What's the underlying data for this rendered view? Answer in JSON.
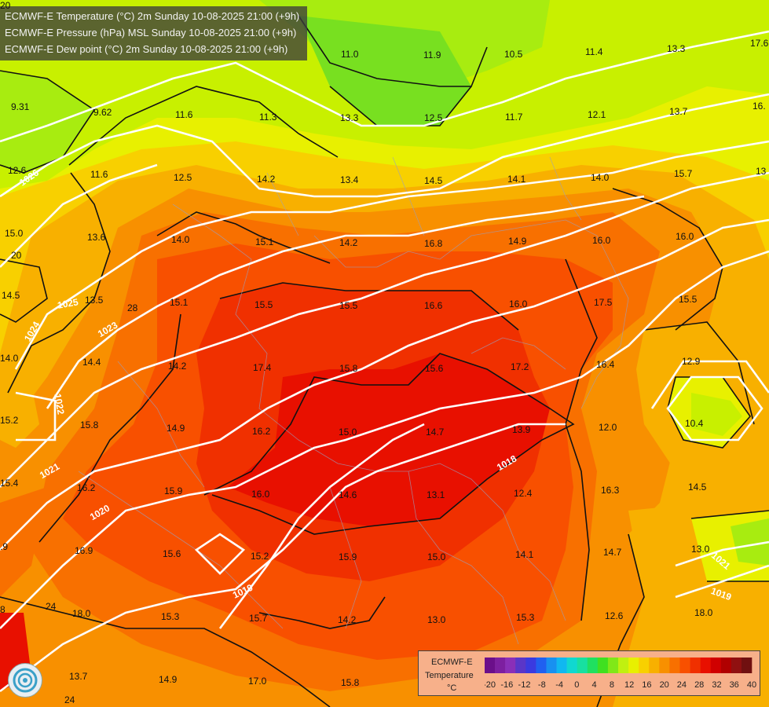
{
  "titles": [
    "ECMWF-E Temperature (°C) 2m Sunday 10-08-2025 21:00 (+9h)",
    "ECMWF-E Pressure (hPa) MSL Sunday 10-08-2025 21:00 (+9h)",
    "ECMWF-E Dew point (°C) 2m Sunday 10-08-2025 21:00 (+9h)"
  ],
  "legend": {
    "model": "ECMWF-E",
    "variable": "Temperature",
    "unit": "°C",
    "ticks": [
      "-20",
      "-16",
      "-12",
      "-8",
      "-4",
      "0",
      "4",
      "8",
      "12",
      "16",
      "20",
      "24",
      "28",
      "32",
      "36",
      "40"
    ],
    "colors": [
      "#6b0f8a",
      "#7d1fa0",
      "#8a2fb8",
      "#5a36c8",
      "#3a3ae0",
      "#2060f0",
      "#1890f0",
      "#10b8f0",
      "#10d8d0",
      "#18e0a0",
      "#20e060",
      "#40e020",
      "#80e818",
      "#c0f010",
      "#e8f000",
      "#f8d000",
      "#f8b000",
      "#f89000",
      "#f87000",
      "#f85000",
      "#f03000",
      "#e81000",
      "#d00000",
      "#b00000",
      "#901010",
      "#701010"
    ]
  },
  "dewpoint_labels": [
    {
      "t": "9.31"
    },
    {
      "t": "9.62"
    },
    {
      "t": "11.6"
    },
    {
      "t": "11.3"
    },
    {
      "t": "13.3"
    },
    {
      "t": "12.5"
    },
    {
      "t": "11.7"
    },
    {
      "t": "12.1"
    },
    {
      "t": "13.7"
    },
    {
      "t": "12.6"
    },
    {
      "t": "11.6"
    },
    {
      "t": "12.5"
    },
    {
      "t": "14.2"
    },
    {
      "t": "13.4"
    },
    {
      "t": "14.5"
    },
    {
      "t": "14.1"
    },
    {
      "t": "14.0"
    },
    {
      "t": "15.7"
    },
    {
      "t": "15.0"
    },
    {
      "t": "13.6"
    },
    {
      "t": "14.0"
    },
    {
      "t": "15.1"
    },
    {
      "t": "14.2"
    },
    {
      "t": "16.8"
    },
    {
      "t": "14.9"
    },
    {
      "t": "16.0"
    },
    {
      "t": "16.0"
    },
    {
      "t": "14.5"
    },
    {
      "t": "13.5"
    },
    {
      "t": "15.1"
    },
    {
      "t": "15.5"
    },
    {
      "t": "15.5"
    },
    {
      "t": "16.6"
    },
    {
      "t": "16.0"
    },
    {
      "t": "17.5"
    },
    {
      "t": "15.5"
    },
    {
      "t": "14.0"
    },
    {
      "t": "14.4"
    },
    {
      "t": "14.2"
    },
    {
      "t": "17.4"
    },
    {
      "t": "15.8"
    },
    {
      "t": "15.6"
    },
    {
      "t": "17.2"
    },
    {
      "t": "16.4"
    },
    {
      "t": "12.9"
    },
    {
      "t": "15.8"
    },
    {
      "t": "14.9"
    },
    {
      "t": "16.2"
    },
    {
      "t": "15.0"
    },
    {
      "t": "14.7"
    },
    {
      "t": "13.9"
    },
    {
      "t": "12.0"
    },
    {
      "t": "10.4"
    },
    {
      "t": "16.2"
    },
    {
      "t": "15.9"
    },
    {
      "t": "16.0"
    },
    {
      "t": "14.6"
    },
    {
      "t": "13.1"
    },
    {
      "t": "12.4"
    },
    {
      "t": "16.3"
    },
    {
      "t": "14.5"
    },
    {
      "t": "16.9"
    },
    {
      "t": "15.6"
    },
    {
      "t": "15.2"
    },
    {
      "t": "15.9"
    },
    {
      "t": "15.0"
    },
    {
      "t": "14.1"
    },
    {
      "t": "14.7"
    },
    {
      "t": "13.0"
    },
    {
      "t": "18.0"
    },
    {
      "t": "15.3"
    },
    {
      "t": "15.7"
    },
    {
      "t": "14.2"
    },
    {
      "t": "13.0"
    },
    {
      "t": "15.3"
    },
    {
      "t": "12.6"
    },
    {
      "t": "18.0"
    },
    {
      "t": "13.7"
    },
    {
      "t": "14.9"
    },
    {
      "t": "17.0"
    },
    {
      "t": "15.8"
    },
    {
      "t": "11.0"
    },
    {
      "t": "11.9"
    },
    {
      "t": "10.5"
    },
    {
      "t": "11.4"
    },
    {
      "t": "13.3"
    },
    {
      "t": "17.6"
    },
    {
      "t": "16."
    },
    {
      "t": "13"
    },
    {
      "t": "15.2"
    },
    {
      "t": "15.4"
    },
    {
      "t": ".9"
    },
    {
      "t": "8"
    },
    {
      "t": "24"
    },
    {
      "t": "24"
    },
    {
      "t": "28"
    },
    {
      "t": "20"
    },
    {
      "t": "20"
    }
  ],
  "isobar_labels": [
    "1026",
    "1025",
    "1024",
    "1023",
    "1022",
    "1021",
    "1020",
    "1019",
    "1018",
    "1021",
    "1019"
  ]
}
